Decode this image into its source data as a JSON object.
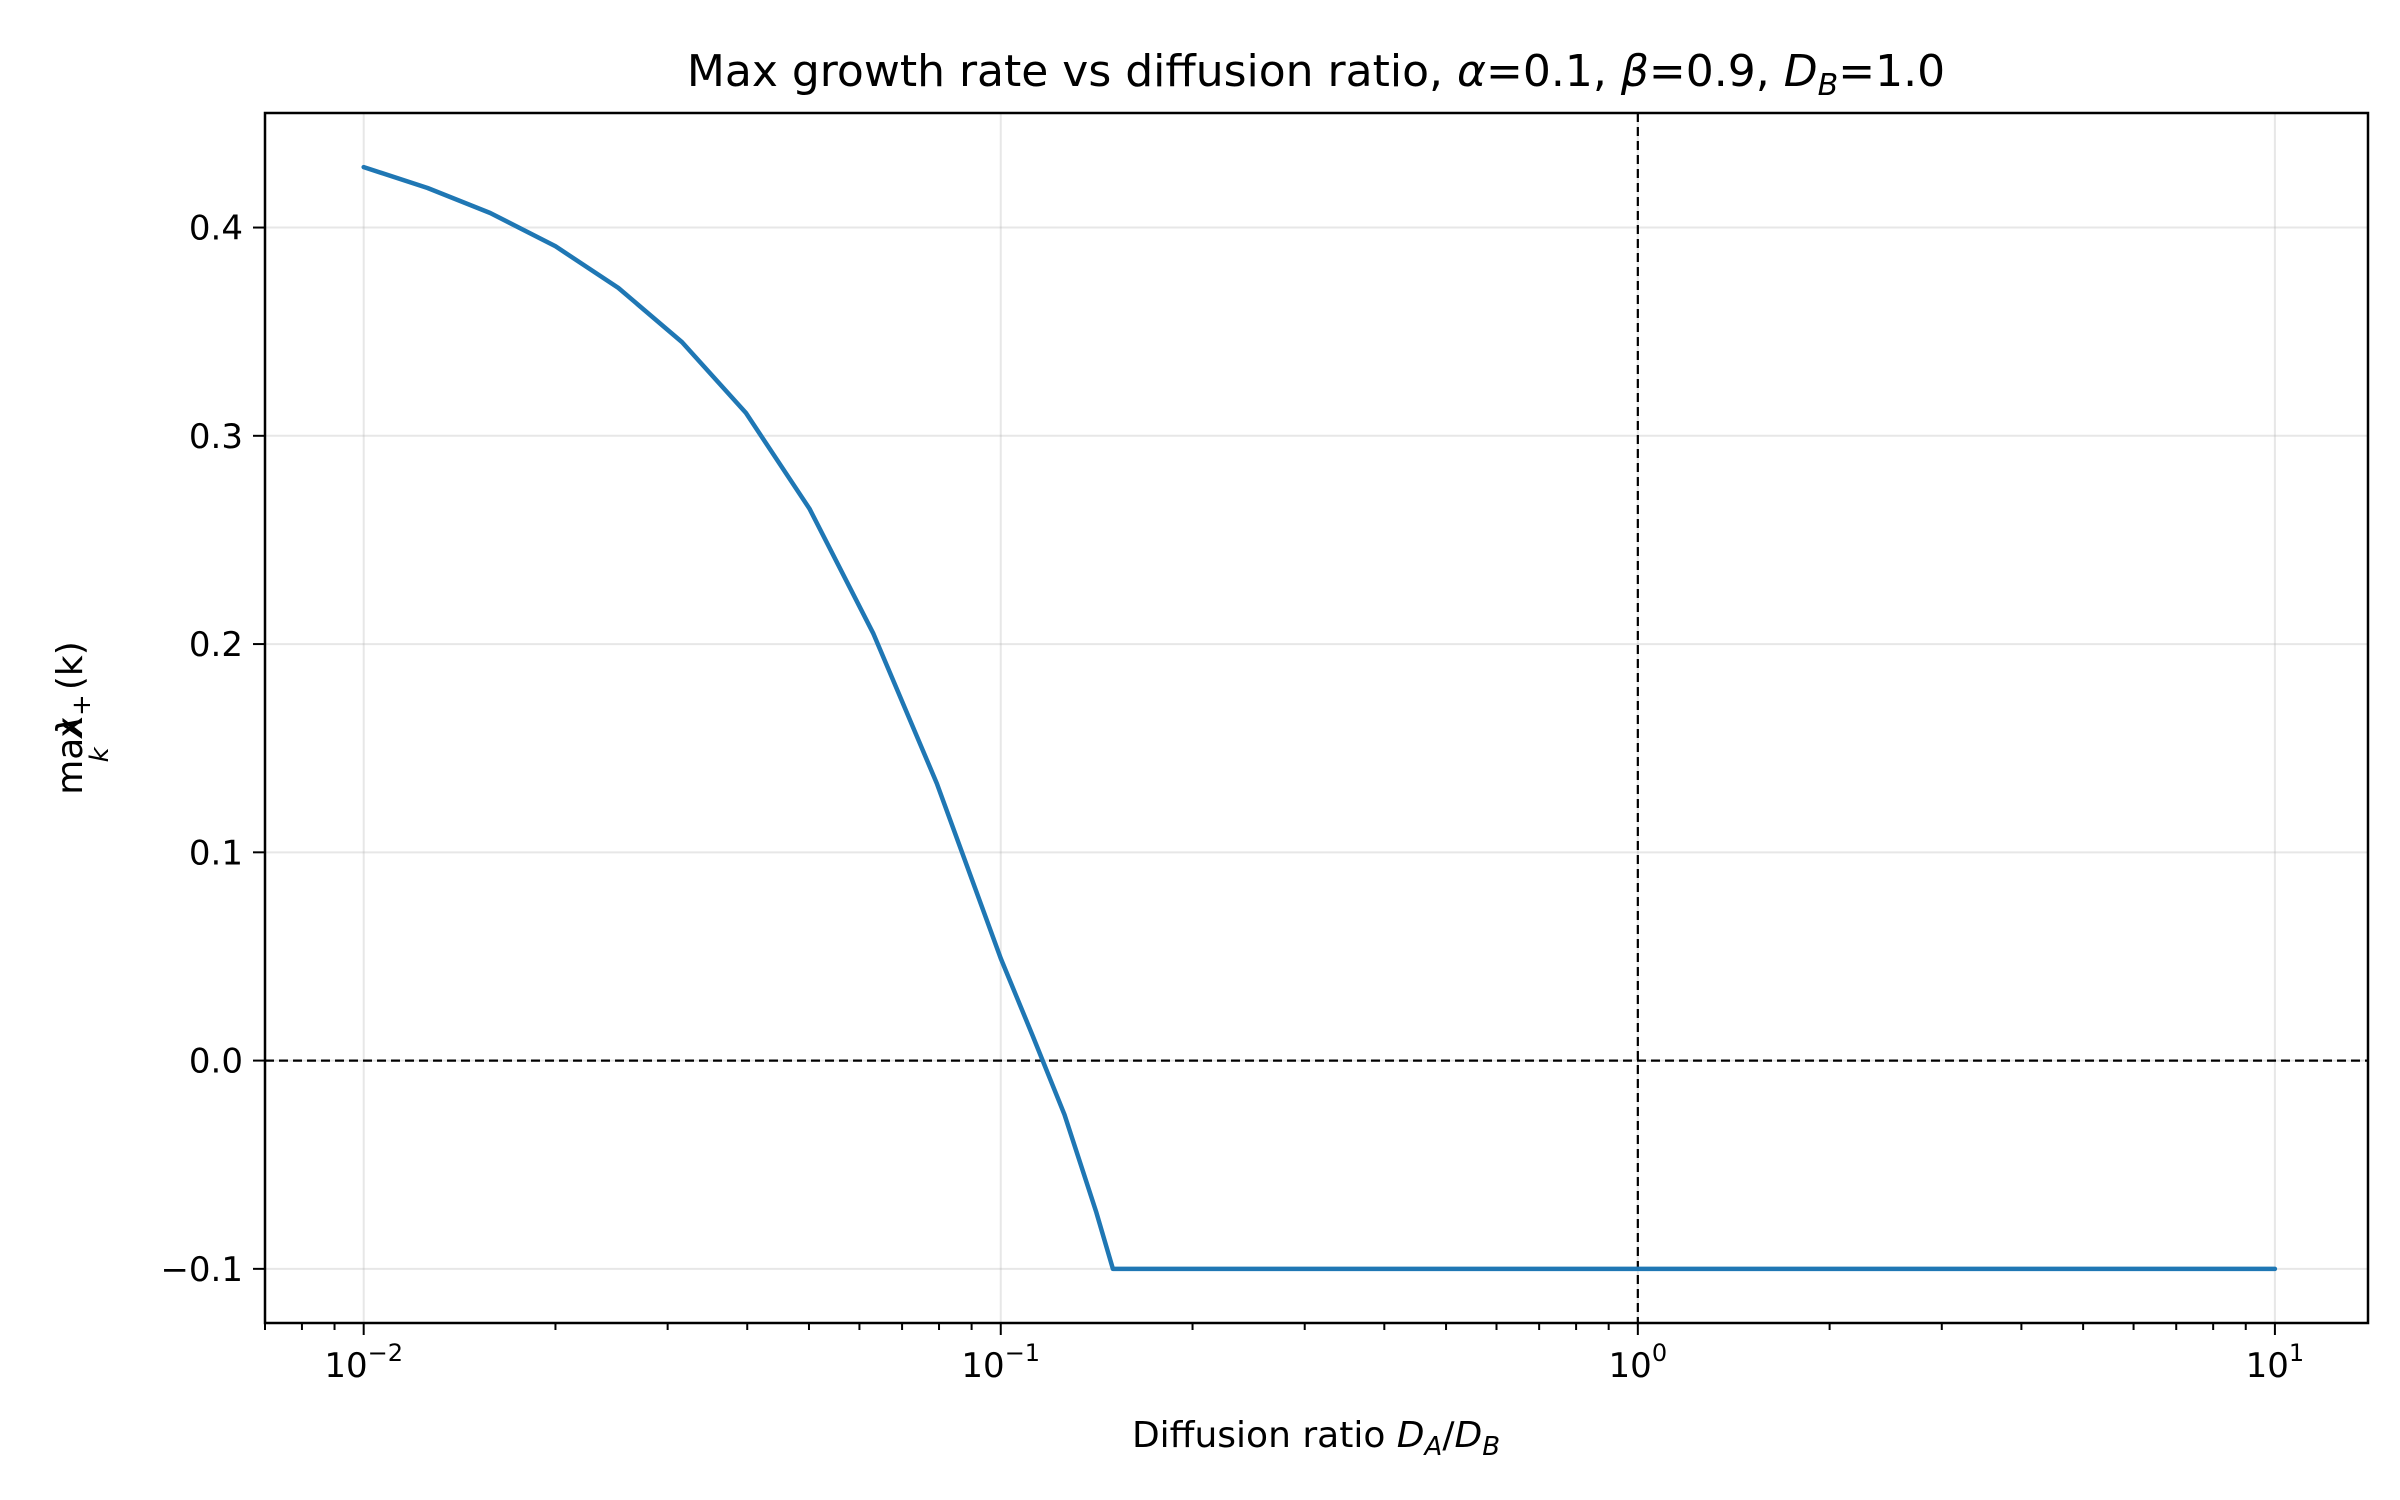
{
  "chart_data": {
    "type": "line",
    "title": "Max growth rate vs diffusion ratio, α=0.1, β=0.9, D_B=1.0",
    "title_parts": {
      "prefix": "Max growth rate vs diffusion ratio, ",
      "alpha_sym": "α",
      "alpha_val": "=0.1, ",
      "beta_sym": "β",
      "beta_val": "=0.9, ",
      "db_sym": "D",
      "db_sub": "B",
      "db_val": "=1.0"
    },
    "xlabel": "Diffusion ratio D_A/D_B",
    "xlabel_parts": {
      "prefix": "Diffusion ratio ",
      "num_sym": "D",
      "num_sub": "A",
      "slash": "/",
      "den_sym": "D",
      "den_sub": "B"
    },
    "ylabel": "max_k λ_+(k)",
    "ylabel_parts": {
      "op": "max",
      "op_sub": "k",
      "sym": "λ",
      "sym_sub": "+",
      "arg": "(k)"
    },
    "x_scale": "log",
    "xlim": [
      0.007,
      14
    ],
    "ylim": [
      -0.126,
      0.455
    ],
    "grid": true,
    "x_ticks": [
      {
        "value": 0.01,
        "base": "10",
        "exp": "−2"
      },
      {
        "value": 0.1,
        "base": "10",
        "exp": "−1"
      },
      {
        "value": 1,
        "base": "10",
        "exp": "0"
      },
      {
        "value": 10,
        "base": "10",
        "exp": "1"
      }
    ],
    "y_ticks": [
      {
        "value": -0.1,
        "label": "−0.1"
      },
      {
        "value": 0.0,
        "label": "0.0"
      },
      {
        "value": 0.1,
        "label": "0.1"
      },
      {
        "value": 0.2,
        "label": "0.2"
      },
      {
        "value": 0.3,
        "label": "0.3"
      },
      {
        "value": 0.4,
        "label": "0.4"
      }
    ],
    "reference_lines": [
      {
        "orientation": "horizontal",
        "value": 0.0,
        "style": "dashed",
        "color": "#000000"
      },
      {
        "orientation": "vertical",
        "value": 1.0,
        "style": "dashed",
        "color": "#000000"
      }
    ],
    "series": [
      {
        "color": "#1f77b4",
        "x": [
          0.01,
          0.0126,
          0.0158,
          0.02,
          0.0251,
          0.0316,
          0.0398,
          0.0501,
          0.0631,
          0.0794,
          0.1,
          0.1122,
          0.1259,
          0.1413,
          0.15,
          0.2,
          0.3,
          0.5,
          1.0,
          2.0,
          5.0,
          10.0
        ],
        "y": [
          0.429,
          0.419,
          0.407,
          0.391,
          0.371,
          0.345,
          0.311,
          0.265,
          0.205,
          0.133,
          0.049,
          0.012,
          -0.026,
          -0.073,
          -0.1,
          -0.1,
          -0.1,
          -0.1,
          -0.1,
          -0.1,
          -0.1,
          -0.1
        ]
      }
    ]
  }
}
